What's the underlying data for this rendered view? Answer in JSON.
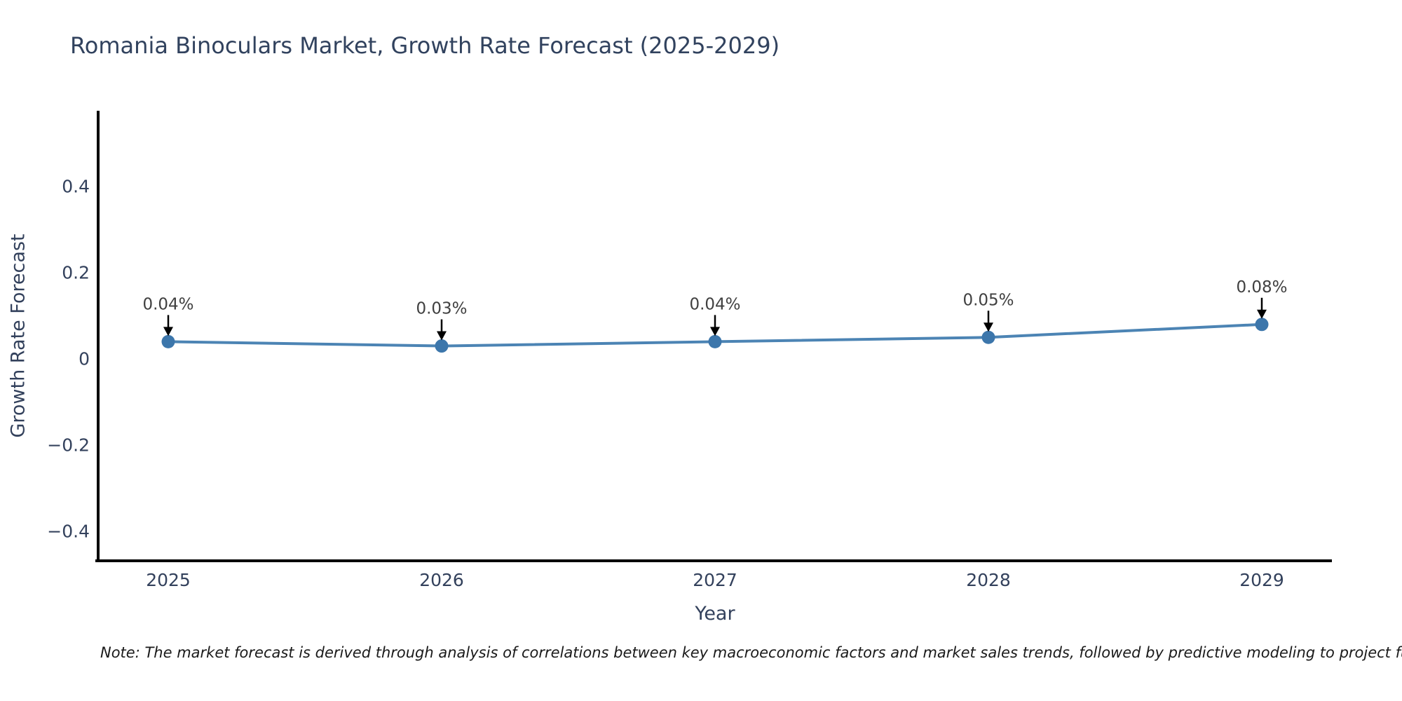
{
  "chart_data": {
    "type": "line",
    "title": "Romania Binoculars Market, Growth Rate Forecast (2025-2029)",
    "xlabel": "Year",
    "ylabel": "Growth Rate Forecast",
    "x": [
      2025,
      2026,
      2027,
      2028,
      2029
    ],
    "x_tick_labels": [
      "2025",
      "2026",
      "2027",
      "2028",
      "2029"
    ],
    "y": [
      0.04,
      0.03,
      0.04,
      0.05,
      0.08
    ],
    "point_labels": [
      "0.04%",
      "0.03%",
      "0.04%",
      "0.05%",
      "0.08%"
    ],
    "y_ticks": [
      0.4,
      0.2,
      0,
      -0.2,
      -0.4
    ],
    "y_tick_labels": [
      "0.4",
      "0.2",
      "0",
      "−0.2",
      "−0.4"
    ],
    "ylim": [
      -0.468,
      0.576
    ],
    "xlim": [
      2024.74,
      2029.26
    ],
    "grid": false,
    "legend_position": "none",
    "marker_style": "circle",
    "annotation_arrows": "down-to-point",
    "note": "Note: The market forecast is derived through analysis of correlations between key macroeconomic factors and market sales trends, followed by predictive modeling to project future sa",
    "colors": {
      "line": "#4c84b4",
      "marker": "#3c76ab",
      "spine": "#000000",
      "tick_text": "#33415c",
      "axis_title_text": "#33415c",
      "title_text": "#31425e",
      "annotation_text": "#404040",
      "arrow": "#000000",
      "background": "#ffffff"
    }
  }
}
